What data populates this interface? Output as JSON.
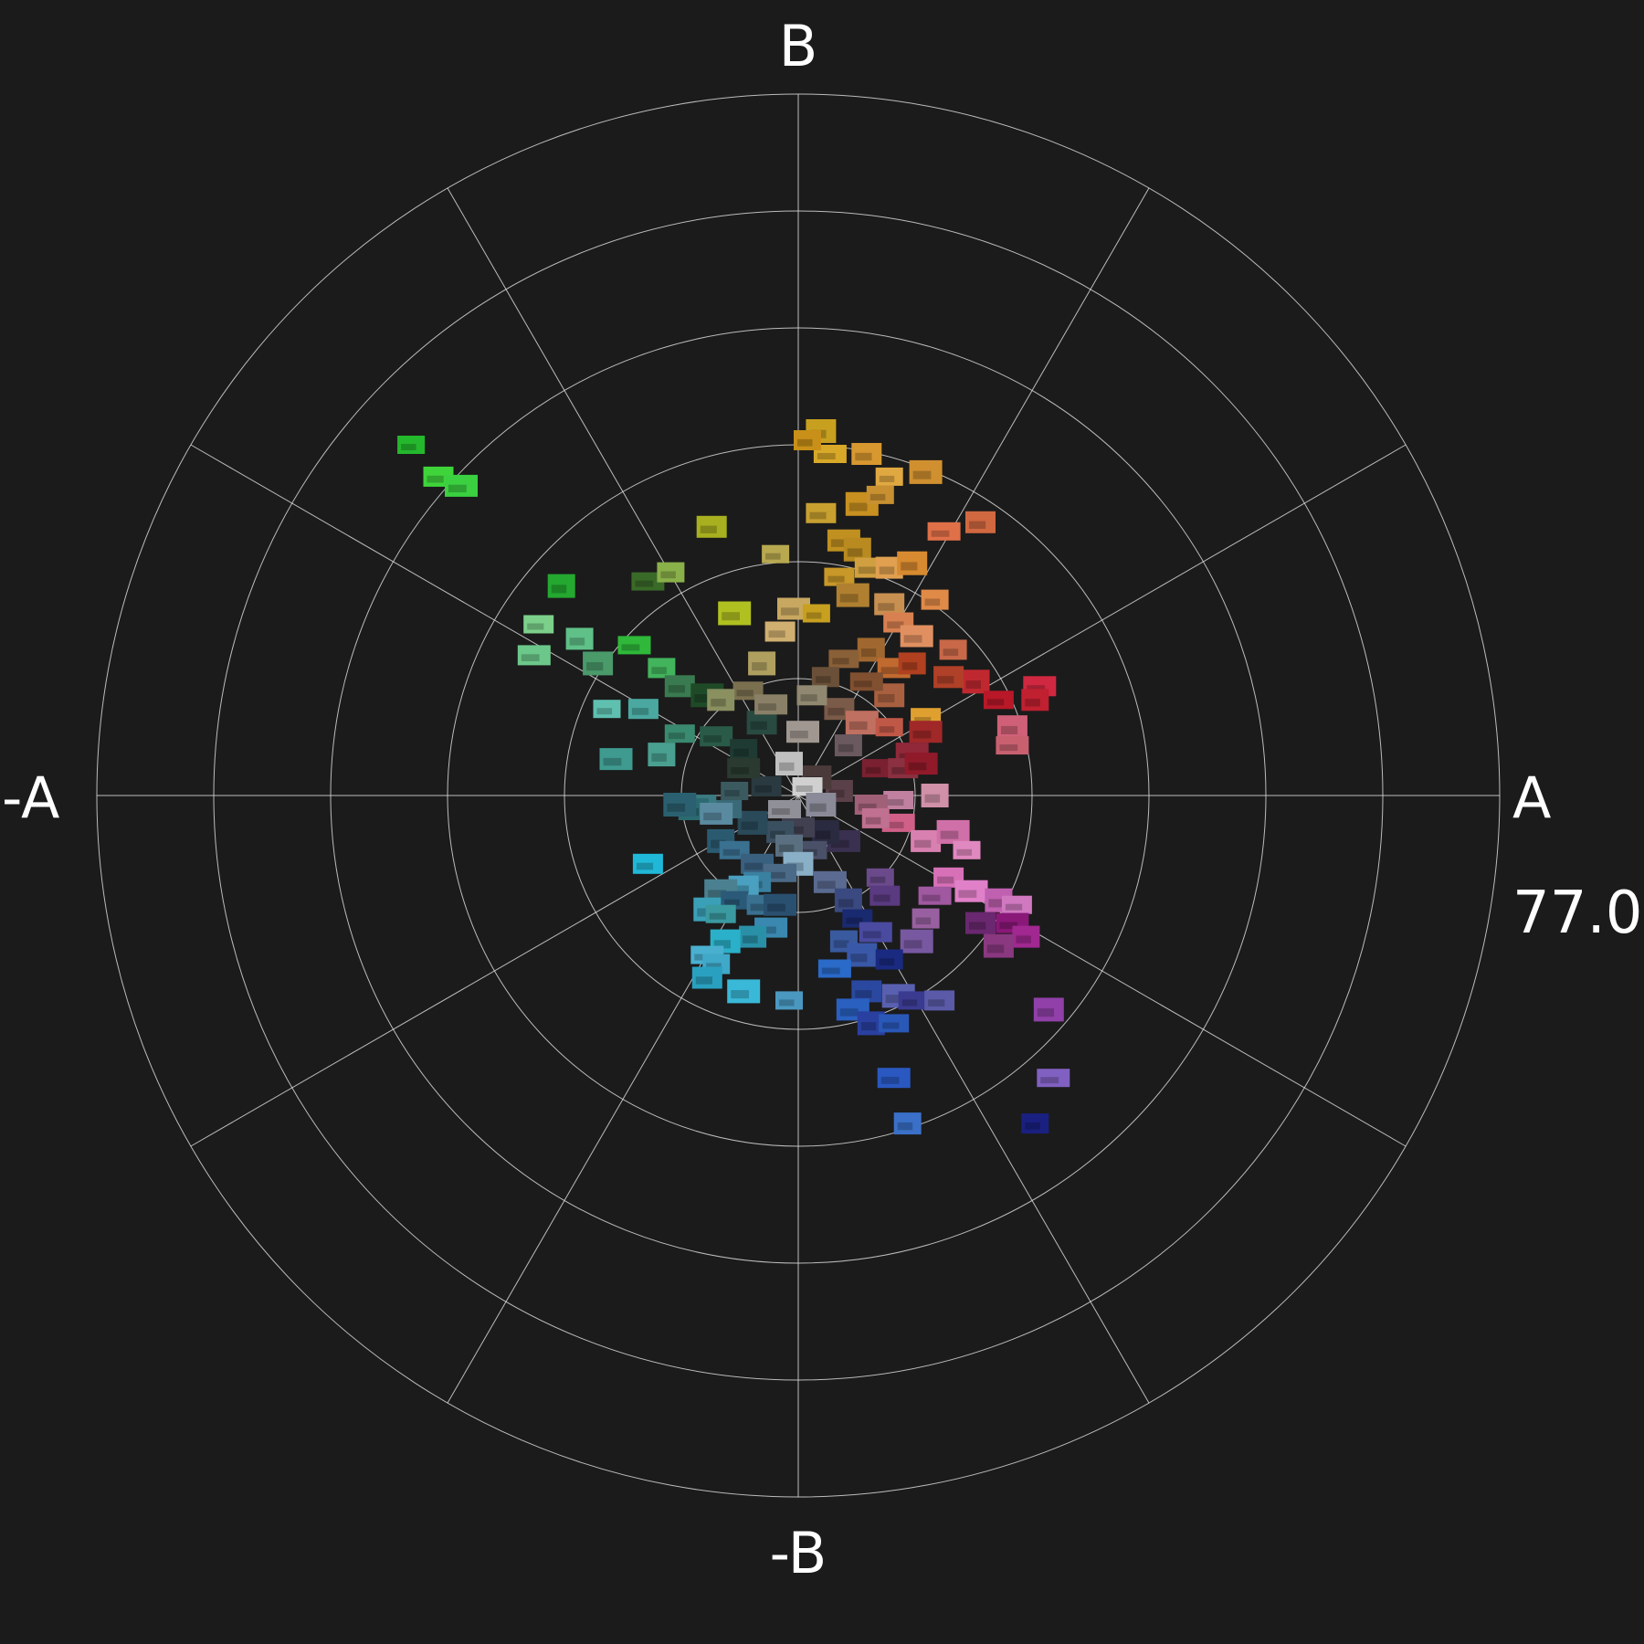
{
  "chart_data": {
    "type": "scatter",
    "subtype": "polar-thumbnail-scatter",
    "axis_labels": {
      "top": "B",
      "bottom": "-B",
      "left": "-A",
      "right": "A"
    },
    "scale_label": "77.0",
    "radial_max": 77.0,
    "rings": 6,
    "spokes_deg": [
      0,
      30,
      60,
      90,
      120,
      150,
      180,
      210,
      240,
      270,
      300,
      330
    ],
    "grid": true,
    "colors": {
      "background": "#1b1b1b",
      "grid": "#d8d8d8",
      "text": "#ffffff"
    },
    "points": [
      {
        "a": -42.5,
        "b": 38.5,
        "color": "#24b82c"
      },
      {
        "a": -39.5,
        "b": 35.0,
        "color": "#3fd43a"
      },
      {
        "a": -37.0,
        "b": 34.0,
        "color": "#3ad040"
      },
      {
        "a": -26.0,
        "b": 23.0,
        "color": "#24a830"
      },
      {
        "a": -28.5,
        "b": 18.8,
        "color": "#7cd08a"
      },
      {
        "a": -29.0,
        "b": 15.4,
        "color": "#6cc88a"
      },
      {
        "a": -24.0,
        "b": 17.2,
        "color": "#5fc088"
      },
      {
        "a": -22.0,
        "b": 14.5,
        "color": "#4a9a6a"
      },
      {
        "a": -18.0,
        "b": 16.5,
        "color": "#2fb83a"
      },
      {
        "a": -15.0,
        "b": 14.0,
        "color": "#42b45c"
      },
      {
        "a": -13.0,
        "b": 12.0,
        "color": "#3a7a50"
      },
      {
        "a": -10.0,
        "b": 11.0,
        "color": "#1f4a28"
      },
      {
        "a": -21.0,
        "b": 9.5,
        "color": "#5fc0b0"
      },
      {
        "a": -17.0,
        "b": 9.5,
        "color": "#4aa8a0"
      },
      {
        "a": -20.0,
        "b": 4.0,
        "color": "#3f9a90"
      },
      {
        "a": -15.0,
        "b": 4.5,
        "color": "#4aa090"
      },
      {
        "a": -13.0,
        "b": 6.8,
        "color": "#3a8a70"
      },
      {
        "a": -9.0,
        "b": 6.5,
        "color": "#2a5a48"
      },
      {
        "a": -6.0,
        "b": 5.0,
        "color": "#1e3a32"
      },
      {
        "a": -4.0,
        "b": 8.0,
        "color": "#284a40"
      },
      {
        "a": -16.5,
        "b": 23.5,
        "color": "#3a6a28"
      },
      {
        "a": -14.0,
        "b": 24.5,
        "color": "#8ab04a"
      },
      {
        "a": -9.5,
        "b": 29.5,
        "color": "#a8b020"
      },
      {
        "a": -7.0,
        "b": 20.0,
        "color": "#b0c020"
      },
      {
        "a": -2.5,
        "b": 26.5,
        "color": "#b8a850"
      },
      {
        "a": -2.0,
        "b": 18.0,
        "color": "#d0b070"
      },
      {
        "a": -0.5,
        "b": 20.5,
        "color": "#c8a860"
      },
      {
        "a": -4.0,
        "b": 14.5,
        "color": "#b0a060"
      },
      {
        "a": -5.5,
        "b": 11.5,
        "color": "#7a7050"
      },
      {
        "a": -3.0,
        "b": 10.0,
        "color": "#8a8068"
      },
      {
        "a": -8.5,
        "b": 10.5,
        "color": "#8a9060"
      },
      {
        "a": 2.5,
        "b": 40.0,
        "color": "#c8a020"
      },
      {
        "a": 3.5,
        "b": 37.5,
        "color": "#d8a828"
      },
      {
        "a": 1.0,
        "b": 39.0,
        "color": "#c89018"
      },
      {
        "a": 7.5,
        "b": 37.5,
        "color": "#d89830"
      },
      {
        "a": 7.0,
        "b": 32.0,
        "color": "#c89020"
      },
      {
        "a": 9.0,
        "b": 33.0,
        "color": "#c89030"
      },
      {
        "a": 2.5,
        "b": 31.0,
        "color": "#c8a030"
      },
      {
        "a": 5.0,
        "b": 28.0,
        "color": "#c09020"
      },
      {
        "a": 6.5,
        "b": 27.0,
        "color": "#b88a20"
      },
      {
        "a": 4.5,
        "b": 24.0,
        "color": "#c89828"
      },
      {
        "a": 8.0,
        "b": 25.0,
        "color": "#d0a040"
      },
      {
        "a": 10.0,
        "b": 25.0,
        "color": "#e0a050"
      },
      {
        "a": 12.5,
        "b": 25.5,
        "color": "#d88a30"
      },
      {
        "a": 16.0,
        "b": 29.0,
        "color": "#e07048"
      },
      {
        "a": 15.0,
        "b": 21.5,
        "color": "#e08a48"
      },
      {
        "a": 10.0,
        "b": 21.0,
        "color": "#c89050"
      },
      {
        "a": 6.0,
        "b": 22.0,
        "color": "#b08030"
      },
      {
        "a": 2.0,
        "b": 20.0,
        "color": "#c8a020"
      },
      {
        "a": 11.0,
        "b": 19.0,
        "color": "#d88050"
      },
      {
        "a": 13.0,
        "b": 17.5,
        "color": "#e09060"
      },
      {
        "a": 8.0,
        "b": 16.0,
        "color": "#a06830"
      },
      {
        "a": 5.0,
        "b": 15.0,
        "color": "#8a6038"
      },
      {
        "a": 10.5,
        "b": 14.0,
        "color": "#c06a30"
      },
      {
        "a": 12.5,
        "b": 14.5,
        "color": "#b04020"
      },
      {
        "a": 10.0,
        "b": 11.0,
        "color": "#a86040"
      },
      {
        "a": 7.5,
        "b": 12.5,
        "color": "#805030"
      },
      {
        "a": 3.0,
        "b": 13.0,
        "color": "#6a5038"
      },
      {
        "a": 4.5,
        "b": 9.5,
        "color": "#7a5a48"
      },
      {
        "a": 7.0,
        "b": 8.0,
        "color": "#c07060"
      },
      {
        "a": 10.0,
        "b": 7.5,
        "color": "#c05848"
      },
      {
        "a": 14.0,
        "b": 8.5,
        "color": "#e0a030"
      },
      {
        "a": 14.0,
        "b": 7.0,
        "color": "#a02828"
      },
      {
        "a": 19.5,
        "b": 12.5,
        "color": "#c02830"
      },
      {
        "a": 22.0,
        "b": 10.5,
        "color": "#b81828"
      },
      {
        "a": 26.5,
        "b": 12.0,
        "color": "#d02840"
      },
      {
        "a": 26.0,
        "b": 10.5,
        "color": "#c02030"
      },
      {
        "a": 23.5,
        "b": 7.5,
        "color": "#d06078"
      },
      {
        "a": 23.5,
        "b": 5.5,
        "color": "#c86070"
      },
      {
        "a": 17.0,
        "b": 16.0,
        "color": "#c86848"
      },
      {
        "a": 16.5,
        "b": 13.0,
        "color": "#b04028"
      },
      {
        "a": 12.5,
        "b": 4.5,
        "color": "#90283a"
      },
      {
        "a": 8.5,
        "b": 3.0,
        "color": "#7a2030"
      },
      {
        "a": 11.5,
        "b": 3.0,
        "color": "#8a3040"
      },
      {
        "a": 13.5,
        "b": 3.5,
        "color": "#901a2a"
      },
      {
        "a": 15.0,
        "b": 0.0,
        "color": "#d090a8"
      },
      {
        "a": 11.0,
        "b": -0.5,
        "color": "#c080a0"
      },
      {
        "a": 8.0,
        "b": -1.0,
        "color": "#a06078"
      },
      {
        "a": 4.5,
        "b": 0.5,
        "color": "#5a4048"
      },
      {
        "a": 2.0,
        "b": 2.0,
        "color": "#4a3a3a"
      },
      {
        "a": 11.0,
        "b": -3.0,
        "color": "#d06088"
      },
      {
        "a": 8.5,
        "b": -2.5,
        "color": "#c07090"
      },
      {
        "a": 14.0,
        "b": -5.0,
        "color": "#d880b0"
      },
      {
        "a": 17.0,
        "b": -4.0,
        "color": "#d070a8"
      },
      {
        "a": 18.5,
        "b": -6.0,
        "color": "#e088c0"
      },
      {
        "a": 16.5,
        "b": -9.0,
        "color": "#d870b8"
      },
      {
        "a": 19.0,
        "b": -10.5,
        "color": "#e080c8"
      },
      {
        "a": 22.0,
        "b": -11.5,
        "color": "#c060b0"
      },
      {
        "a": 24.0,
        "b": -12.0,
        "color": "#d078c0"
      },
      {
        "a": 23.5,
        "b": -14.0,
        "color": "#8a1878"
      },
      {
        "a": 25.0,
        "b": -15.5,
        "color": "#a02890"
      },
      {
        "a": 22.0,
        "b": -16.5,
        "color": "#8a3880"
      },
      {
        "a": 15.0,
        "b": -11.0,
        "color": "#a058a0"
      },
      {
        "a": 14.0,
        "b": -13.5,
        "color": "#9860a0"
      },
      {
        "a": 20.0,
        "b": -14.0,
        "color": "#6a2870"
      },
      {
        "a": 13.0,
        "b": -16.0,
        "color": "#7858a0"
      },
      {
        "a": 9.0,
        "b": -9.0,
        "color": "#6a4a8a"
      },
      {
        "a": 9.5,
        "b": -11.0,
        "color": "#5a3a80"
      },
      {
        "a": 5.0,
        "b": -5.0,
        "color": "#3a3050"
      },
      {
        "a": 3.0,
        "b": -4.0,
        "color": "#2a2a40"
      },
      {
        "a": 1.5,
        "b": -6.0,
        "color": "#4a5068"
      },
      {
        "a": 0.0,
        "b": -3.5,
        "color": "#404050"
      },
      {
        "a": -2.0,
        "b": -4.0,
        "color": "#3a5060"
      },
      {
        "a": -5.0,
        "b": -3.0,
        "color": "#2a4a5a"
      },
      {
        "a": -8.0,
        "b": -1.5,
        "color": "#3a6a78"
      },
      {
        "a": -10.5,
        "b": -1.0,
        "color": "#3a7a80"
      },
      {
        "a": -11.5,
        "b": -1.5,
        "color": "#2a6a70"
      },
      {
        "a": -13.0,
        "b": -1.0,
        "color": "#2a6070"
      },
      {
        "a": -7.0,
        "b": 0.5,
        "color": "#3a5a60"
      },
      {
        "a": -3.5,
        "b": 1.0,
        "color": "#2a3a40"
      },
      {
        "a": -9.0,
        "b": -2.0,
        "color": "#5a8aa0"
      },
      {
        "a": -8.5,
        "b": -5.0,
        "color": "#2a5a70"
      },
      {
        "a": -7.0,
        "b": -6.0,
        "color": "#3a7090"
      },
      {
        "a": -4.5,
        "b": -7.5,
        "color": "#3a6080"
      },
      {
        "a": -1.0,
        "b": -5.5,
        "color": "#5a7080"
      },
      {
        "a": 0.0,
        "b": -7.5,
        "color": "#8ab0c8"
      },
      {
        "a": -2.0,
        "b": -8.5,
        "color": "#4a6a88"
      },
      {
        "a": -4.5,
        "b": -9.5,
        "color": "#3a80a0"
      },
      {
        "a": -6.0,
        "b": -10.0,
        "color": "#4aa0c0"
      },
      {
        "a": -8.5,
        "b": -10.5,
        "color": "#4a8090"
      },
      {
        "a": -7.0,
        "b": -11.5,
        "color": "#2a5a78"
      },
      {
        "a": -4.0,
        "b": -12.0,
        "color": "#3a7090"
      },
      {
        "a": -2.0,
        "b": -12.0,
        "color": "#2a5070"
      },
      {
        "a": -10.0,
        "b": -12.5,
        "color": "#3aa0b8"
      },
      {
        "a": -8.5,
        "b": -13.0,
        "color": "#3a9aa0"
      },
      {
        "a": -3.0,
        "b": -14.5,
        "color": "#3a88b0"
      },
      {
        "a": -5.0,
        "b": -15.5,
        "color": "#2a90a8"
      },
      {
        "a": -8.0,
        "b": -16.0,
        "color": "#2ab0c8"
      },
      {
        "a": -10.0,
        "b": -17.5,
        "color": "#4ab0d0"
      },
      {
        "a": -9.0,
        "b": -18.5,
        "color": "#40a8c8"
      },
      {
        "a": -10.0,
        "b": -20.0,
        "color": "#2aa0c0"
      },
      {
        "a": -6.0,
        "b": -21.5,
        "color": "#3ab8d8"
      },
      {
        "a": -1.0,
        "b": -22.5,
        "color": "#4a98c0"
      },
      {
        "a": -16.5,
        "b": -7.5,
        "color": "#20b8d8"
      },
      {
        "a": 3.5,
        "b": -9.5,
        "color": "#5a6a90"
      },
      {
        "a": 5.5,
        "b": -11.5,
        "color": "#3a4a80"
      },
      {
        "a": 6.5,
        "b": -13.5,
        "color": "#1a2a70"
      },
      {
        "a": 8.5,
        "b": -15.0,
        "color": "#4a4aa0"
      },
      {
        "a": 5.0,
        "b": -16.0,
        "color": "#3a5aa0"
      },
      {
        "a": 7.0,
        "b": -17.5,
        "color": "#3a58a8"
      },
      {
        "a": 4.0,
        "b": -19.0,
        "color": "#2a6ac8"
      },
      {
        "a": 10.0,
        "b": -18.0,
        "color": "#1a2a80"
      },
      {
        "a": 7.5,
        "b": -21.5,
        "color": "#2a48a0"
      },
      {
        "a": 11.0,
        "b": -22.0,
        "color": "#5a60b0"
      },
      {
        "a": 12.5,
        "b": -22.5,
        "color": "#3a3a90"
      },
      {
        "a": 15.5,
        "b": -22.5,
        "color": "#5a5aa8"
      },
      {
        "a": 6.0,
        "b": -23.5,
        "color": "#2a60c0"
      },
      {
        "a": 8.0,
        "b": -25.0,
        "color": "#2a40a0"
      },
      {
        "a": 10.5,
        "b": -25.0,
        "color": "#2a58b8"
      },
      {
        "a": 10.5,
        "b": -31.0,
        "color": "#2a58c0"
      },
      {
        "a": 12.0,
        "b": -36.0,
        "color": "#3a70c8"
      },
      {
        "a": 27.5,
        "b": -23.5,
        "color": "#9040a8"
      },
      {
        "a": 28.0,
        "b": -31.0,
        "color": "#8060c0"
      },
      {
        "a": 26.0,
        "b": -36.0,
        "color": "#1a2080"
      },
      {
        "a": 20.0,
        "b": 30.0,
        "color": "#d06840"
      },
      {
        "a": 14.0,
        "b": 35.5,
        "color": "#d09030"
      },
      {
        "a": 10.0,
        "b": 35.0,
        "color": "#e0a840"
      },
      {
        "a": 1.5,
        "b": 11.0,
        "color": "#908870"
      },
      {
        "a": 0.5,
        "b": 7.0,
        "color": "#a09890"
      },
      {
        "a": -1.0,
        "b": 3.5,
        "color": "#c0c0c0"
      },
      {
        "a": 1.0,
        "b": 1.0,
        "color": "#d0d0d0"
      },
      {
        "a": -6.0,
        "b": 3.0,
        "color": "#2a3a30"
      },
      {
        "a": 5.5,
        "b": 5.5,
        "color": "#6a5a60"
      },
      {
        "a": 2.5,
        "b": -1.0,
        "color": "#8a8a98"
      },
      {
        "a": -1.5,
        "b": -1.5,
        "color": "#909098"
      }
    ]
  }
}
